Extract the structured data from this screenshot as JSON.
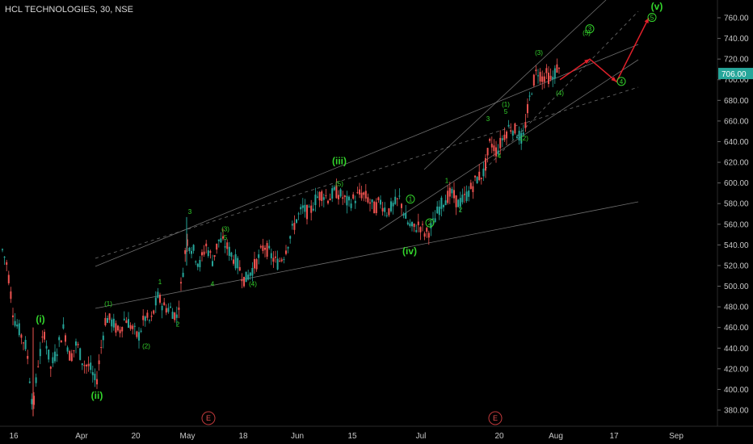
{
  "header": {
    "title": "HCL TECHNOLOGIES, 30, NSE"
  },
  "colors": {
    "background": "#000000",
    "up_candle": "#26a69a",
    "down_candle": "#ef5350",
    "wave_label": "#34d52c",
    "projection": "#e0202a",
    "channel": "#8a8a8a",
    "price_badge": "#26a69a"
  },
  "chart_data": {
    "type": "candlestick",
    "title": "HCL TECHNOLOGIES, 30, NSE",
    "x_tick_labels": [
      "16",
      "Apr",
      "20",
      "May",
      "18",
      "Jun",
      "15",
      "Jul",
      "20",
      "Aug",
      "17",
      "Sep"
    ],
    "y_ticks": [
      380,
      400,
      420,
      440,
      460,
      480,
      500,
      520,
      540,
      560,
      580,
      600,
      620,
      640,
      660,
      680,
      700,
      720,
      740,
      760
    ],
    "y_tick_labels": [
      "380.00",
      "400.00",
      "420.00",
      "440.00",
      "460.00",
      "480.00",
      "500.00",
      "520.00",
      "540.00",
      "560.00",
      "580.00",
      "600.00",
      "620.00",
      "640.00",
      "660.00",
      "680.00",
      "700.00",
      "720.00",
      "740.00",
      "760.00"
    ],
    "ylim": [
      368,
      772
    ],
    "last_price": 706,
    "last_price_label": "706.00",
    "grid": false,
    "price_path": [
      {
        "t": 0,
        "p": 535
      },
      {
        "t": 6,
        "p": 520
      },
      {
        "t": 14,
        "p": 470
      },
      {
        "t": 22,
        "p": 455
      },
      {
        "t": 30,
        "p": 440
      },
      {
        "t": 38,
        "p": 380
      },
      {
        "t": 44,
        "p": 425
      },
      {
        "t": 52,
        "p": 455
      },
      {
        "t": 60,
        "p": 420
      },
      {
        "t": 68,
        "p": 440
      },
      {
        "t": 76,
        "p": 460
      },
      {
        "t": 84,
        "p": 430
      },
      {
        "t": 92,
        "p": 445
      },
      {
        "t": 100,
        "p": 425
      },
      {
        "t": 108,
        "p": 422
      },
      {
        "t": 116,
        "p": 405
      },
      {
        "t": 122,
        "p": 440
      },
      {
        "t": 128,
        "p": 470
      },
      {
        "t": 136,
        "p": 465
      },
      {
        "t": 144,
        "p": 455
      },
      {
        "t": 152,
        "p": 470
      },
      {
        "t": 160,
        "p": 460
      },
      {
        "t": 168,
        "p": 450
      },
      {
        "t": 176,
        "p": 470
      },
      {
        "t": 184,
        "p": 465
      },
      {
        "t": 192,
        "p": 490
      },
      {
        "t": 200,
        "p": 480
      },
      {
        "t": 208,
        "p": 478
      },
      {
        "t": 216,
        "p": 470
      },
      {
        "t": 222,
        "p": 505
      },
      {
        "t": 228,
        "p": 545
      },
      {
        "t": 236,
        "p": 535
      },
      {
        "t": 244,
        "p": 520
      },
      {
        "t": 252,
        "p": 540
      },
      {
        "t": 260,
        "p": 525
      },
      {
        "t": 268,
        "p": 545
      },
      {
        "t": 276,
        "p": 540
      },
      {
        "t": 284,
        "p": 530
      },
      {
        "t": 292,
        "p": 520
      },
      {
        "t": 300,
        "p": 505
      },
      {
        "t": 308,
        "p": 515
      },
      {
        "t": 316,
        "p": 525
      },
      {
        "t": 324,
        "p": 540
      },
      {
        "t": 332,
        "p": 530
      },
      {
        "t": 340,
        "p": 522
      },
      {
        "t": 348,
        "p": 530
      },
      {
        "t": 356,
        "p": 548
      },
      {
        "t": 364,
        "p": 565
      },
      {
        "t": 372,
        "p": 575
      },
      {
        "t": 380,
        "p": 570
      },
      {
        "t": 388,
        "p": 585
      },
      {
        "t": 396,
        "p": 590
      },
      {
        "t": 404,
        "p": 585
      },
      {
        "t": 412,
        "p": 592
      },
      {
        "t": 420,
        "p": 587
      },
      {
        "t": 428,
        "p": 580
      },
      {
        "t": 436,
        "p": 585
      },
      {
        "t": 444,
        "p": 590
      },
      {
        "t": 452,
        "p": 585
      },
      {
        "t": 460,
        "p": 575
      },
      {
        "t": 468,
        "p": 582
      },
      {
        "t": 476,
        "p": 572
      },
      {
        "t": 484,
        "p": 578
      },
      {
        "t": 492,
        "p": 585
      },
      {
        "t": 500,
        "p": 563
      },
      {
        "t": 508,
        "p": 555
      },
      {
        "t": 516,
        "p": 560
      },
      {
        "t": 524,
        "p": 550
      },
      {
        "t": 532,
        "p": 558
      },
      {
        "t": 540,
        "p": 575
      },
      {
        "t": 548,
        "p": 585
      },
      {
        "t": 556,
        "p": 590
      },
      {
        "t": 564,
        "p": 580
      },
      {
        "t": 572,
        "p": 585
      },
      {
        "t": 580,
        "p": 595
      },
      {
        "t": 588,
        "p": 605
      },
      {
        "t": 596,
        "p": 610
      },
      {
        "t": 604,
        "p": 640
      },
      {
        "t": 612,
        "p": 630
      },
      {
        "t": 620,
        "p": 645
      },
      {
        "t": 628,
        "p": 655
      },
      {
        "t": 636,
        "p": 650
      },
      {
        "t": 644,
        "p": 640
      },
      {
        "t": 650,
        "p": 670
      },
      {
        "t": 656,
        "p": 695
      },
      {
        "t": 662,
        "p": 710
      },
      {
        "t": 668,
        "p": 702
      },
      {
        "t": 674,
        "p": 705
      },
      {
        "t": 680,
        "p": 698
      },
      {
        "t": 686,
        "p": 712
      },
      {
        "t": 690,
        "p": 706
      }
    ],
    "wave_labels": [
      {
        "text": "(i)",
        "t": 47,
        "p": 465,
        "big": true
      },
      {
        "text": "(ii)",
        "t": 117,
        "p": 391,
        "big": true
      },
      {
        "text": "(iii)",
        "t": 417,
        "p": 618,
        "big": true
      },
      {
        "text": "(iv)",
        "t": 504,
        "p": 531,
        "big": true
      },
      {
        "text": "(v)",
        "t": 810,
        "p": 768,
        "big": true
      },
      {
        "text": "(1)",
        "t": 131,
        "p": 481,
        "big": false
      },
      {
        "text": "(2)",
        "t": 178,
        "p": 440,
        "big": false
      },
      {
        "text": "1",
        "t": 195,
        "p": 502,
        "big": false
      },
      {
        "text": "2",
        "t": 217,
        "p": 461,
        "big": false
      },
      {
        "text": "3",
        "t": 232,
        "p": 570,
        "big": false
      },
      {
        "text": "4",
        "t": 260,
        "p": 500,
        "big": false
      },
      {
        "text": "(3)",
        "t": 276,
        "p": 553,
        "big": false
      },
      {
        "text": "5",
        "t": 276,
        "p": 545,
        "big": false
      },
      {
        "text": "(4)",
        "t": 310,
        "p": 500,
        "big": false
      },
      {
        "text": "(5)",
        "t": 417,
        "p": 597,
        "big": false
      },
      {
        "text": "1",
        "t": 550,
        "p": 600,
        "big": false
      },
      {
        "text": "2",
        "t": 567,
        "p": 572,
        "big": false
      },
      {
        "text": "3",
        "t": 601,
        "p": 660,
        "big": false
      },
      {
        "text": "4",
        "t": 615,
        "p": 624,
        "big": false
      },
      {
        "text": "(1)",
        "t": 623,
        "p": 674,
        "big": false
      },
      {
        "text": "5",
        "t": 623,
        "p": 667,
        "big": false
      },
      {
        "text": "(2)",
        "t": 646,
        "p": 641,
        "big": false
      },
      {
        "text": "(3)",
        "t": 664,
        "p": 724,
        "big": false
      },
      {
        "text": "(4)",
        "t": 690,
        "p": 685,
        "big": false
      },
      {
        "text": "(5)",
        "t": 723,
        "p": 743,
        "big": false
      }
    ],
    "circled_labels": [
      {
        "text": "1",
        "t": 505,
        "p": 582
      },
      {
        "text": "2",
        "t": 529,
        "p": 559
      },
      {
        "text": "3",
        "t": 727,
        "p": 747
      },
      {
        "text": "4",
        "t": 766,
        "p": 696
      },
      {
        "text": "5",
        "t": 804,
        "p": 758
      }
    ],
    "event_markers": [
      {
        "text": "E",
        "t": 255
      },
      {
        "text": "E",
        "t": 610
      }
    ]
  }
}
